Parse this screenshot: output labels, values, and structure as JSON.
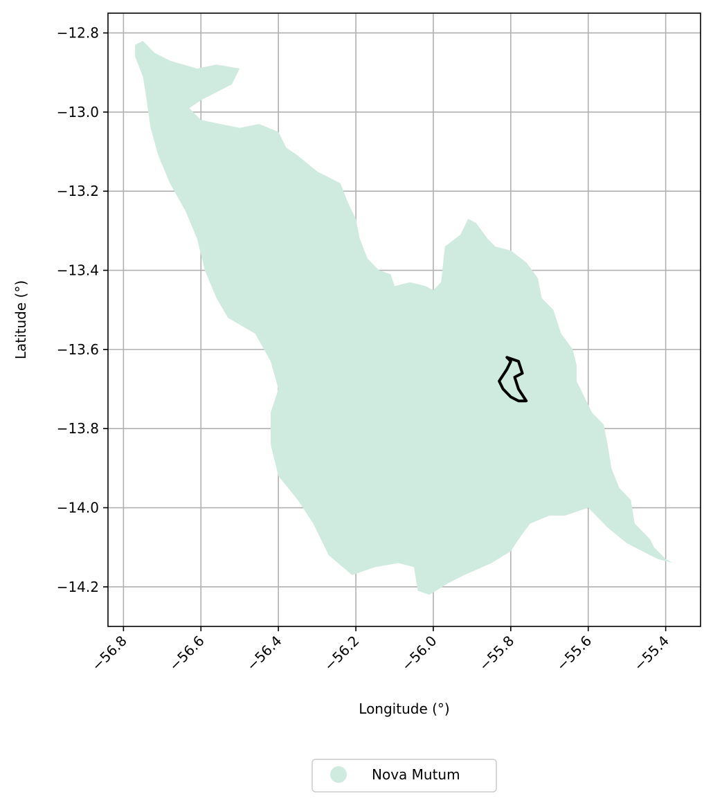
{
  "chart_data": {
    "type": "map",
    "title": "",
    "xlabel": "Longitude (°)",
    "ylabel": "Latitude (°)",
    "xlim": [
      -56.84,
      -55.31
    ],
    "ylim": [
      -14.3,
      -12.75
    ],
    "x_ticks": [
      -56.8,
      -56.6,
      -56.4,
      -56.2,
      -56.0,
      -55.8,
      -55.6,
      -55.4
    ],
    "x_tick_labels": [
      "−56.8",
      "−56.6",
      "−56.4",
      "−56.2",
      "−56.0",
      "−55.8",
      "−55.6",
      "−55.4"
    ],
    "y_ticks": [
      -12.8,
      -13.0,
      -13.2,
      -13.4,
      -13.6,
      -13.8,
      -14.0,
      -14.2
    ],
    "y_tick_labels": [
      "−12.8",
      "−13.0",
      "−13.2",
      "−13.4",
      "−13.6",
      "−13.8",
      "−14.0",
      "−14.2"
    ],
    "grid": true,
    "legend": {
      "position": "bottom-center",
      "entries": [
        {
          "label": "Nova Mutum",
          "color": "#cfeade"
        }
      ]
    },
    "region": {
      "name": "Nova Mutum",
      "fill": "#cfeade",
      "outline": [
        [
          -56.77,
          -12.83
        ],
        [
          -56.75,
          -12.82
        ],
        [
          -56.72,
          -12.85
        ],
        [
          -56.68,
          -12.87
        ],
        [
          -56.61,
          -12.89
        ],
        [
          -56.56,
          -12.88
        ],
        [
          -56.5,
          -12.89
        ],
        [
          -56.52,
          -12.93
        ],
        [
          -56.56,
          -12.95
        ],
        [
          -56.6,
          -12.97
        ],
        [
          -56.63,
          -12.99
        ],
        [
          -56.6,
          -13.02
        ],
        [
          -56.55,
          -13.03
        ],
        [
          -56.5,
          -13.04
        ],
        [
          -56.45,
          -13.03
        ],
        [
          -56.4,
          -13.05
        ],
        [
          -56.38,
          -13.09
        ],
        [
          -56.35,
          -13.11
        ],
        [
          -56.3,
          -13.15
        ],
        [
          -56.24,
          -13.18
        ],
        [
          -56.22,
          -13.23
        ],
        [
          -56.2,
          -13.27
        ],
        [
          -56.19,
          -13.32
        ],
        [
          -56.17,
          -13.37
        ],
        [
          -56.14,
          -13.4
        ],
        [
          -56.11,
          -13.41
        ],
        [
          -56.1,
          -13.44
        ],
        [
          -56.06,
          -13.43
        ],
        [
          -56.02,
          -13.44
        ],
        [
          -56.0,
          -13.45
        ],
        [
          -55.98,
          -13.43
        ],
        [
          -55.97,
          -13.34
        ],
        [
          -55.93,
          -13.31
        ],
        [
          -55.91,
          -13.27
        ],
        [
          -55.89,
          -13.28
        ],
        [
          -55.86,
          -13.32
        ],
        [
          -55.84,
          -13.34
        ],
        [
          -55.8,
          -13.35
        ],
        [
          -55.76,
          -13.38
        ],
        [
          -55.73,
          -13.42
        ],
        [
          -55.72,
          -13.47
        ],
        [
          -55.69,
          -13.5
        ],
        [
          -55.67,
          -13.56
        ],
        [
          -55.64,
          -13.6
        ],
        [
          -55.63,
          -13.64
        ],
        [
          -55.63,
          -13.68
        ],
        [
          -55.61,
          -13.72
        ],
        [
          -55.59,
          -13.76
        ],
        [
          -55.56,
          -13.79
        ],
        [
          -55.55,
          -13.84
        ],
        [
          -55.54,
          -13.9
        ],
        [
          -55.52,
          -13.95
        ],
        [
          -55.49,
          -13.98
        ],
        [
          -55.48,
          -14.04
        ],
        [
          -55.46,
          -14.06
        ],
        [
          -55.44,
          -14.08
        ],
        [
          -55.43,
          -14.1
        ],
        [
          -55.4,
          -14.13
        ],
        [
          -55.38,
          -14.14
        ],
        [
          -55.42,
          -14.13
        ],
        [
          -55.44,
          -14.12
        ],
        [
          -55.5,
          -14.09
        ],
        [
          -55.55,
          -14.05
        ],
        [
          -55.6,
          -14.0
        ],
        [
          -55.66,
          -14.02
        ],
        [
          -55.7,
          -14.02
        ],
        [
          -55.75,
          -14.04
        ],
        [
          -55.78,
          -14.08
        ],
        [
          -55.8,
          -14.11
        ],
        [
          -55.85,
          -14.14
        ],
        [
          -55.92,
          -14.17
        ],
        [
          -55.96,
          -14.19
        ],
        [
          -56.01,
          -14.22
        ],
        [
          -56.04,
          -14.21
        ],
        [
          -56.05,
          -14.15
        ],
        [
          -56.09,
          -14.14
        ],
        [
          -56.15,
          -14.15
        ],
        [
          -56.21,
          -14.17
        ],
        [
          -56.27,
          -14.12
        ],
        [
          -56.31,
          -14.04
        ],
        [
          -56.35,
          -13.98
        ],
        [
          -56.4,
          -13.92
        ],
        [
          -56.42,
          -13.84
        ],
        [
          -56.42,
          -13.76
        ],
        [
          -56.4,
          -13.7
        ],
        [
          -56.42,
          -13.63
        ],
        [
          -56.46,
          -13.56
        ],
        [
          -56.53,
          -13.52
        ],
        [
          -56.56,
          -13.47
        ],
        [
          -56.59,
          -13.4
        ],
        [
          -56.61,
          -13.32
        ],
        [
          -56.64,
          -13.25
        ],
        [
          -56.68,
          -13.18
        ],
        [
          -56.71,
          -13.11
        ],
        [
          -56.73,
          -13.04
        ],
        [
          -56.74,
          -12.97
        ],
        [
          -56.75,
          -12.91
        ],
        [
          -56.77,
          -12.86
        ]
      ]
    },
    "highlight": {
      "stroke": "#000000",
      "outline": [
        [
          -55.81,
          -13.62
        ],
        [
          -55.78,
          -13.63
        ],
        [
          -55.77,
          -13.66
        ],
        [
          -55.79,
          -13.67
        ],
        [
          -55.78,
          -13.7
        ],
        [
          -55.76,
          -13.73
        ],
        [
          -55.78,
          -13.73
        ],
        [
          -55.8,
          -13.72
        ],
        [
          -55.82,
          -13.7
        ],
        [
          -55.83,
          -13.68
        ],
        [
          -55.81,
          -13.65
        ],
        [
          -55.8,
          -13.63
        ]
      ]
    }
  }
}
